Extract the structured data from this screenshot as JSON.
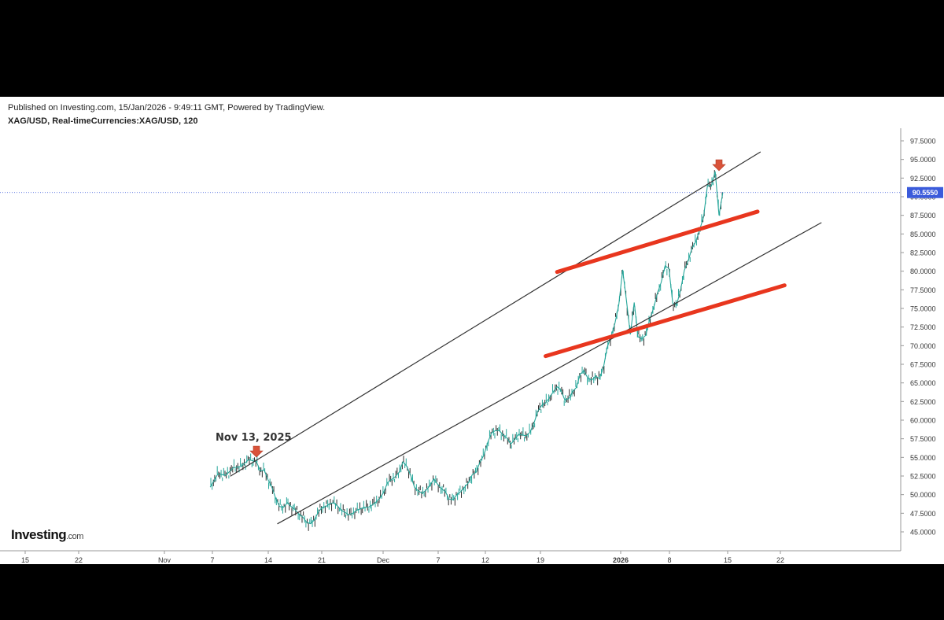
{
  "header": {
    "published": "Published on Investing.com, 15/Jan/2026 - 9:49:11 GMT, Powered by TradingView.",
    "symbol": "XAG/USD, Real-timeCurrencies:XAG/USD, 120"
  },
  "logo": {
    "main": "Investing",
    "suffix": ".com"
  },
  "annotation": {
    "label": "Nov 13, 2025"
  },
  "chart_data": {
    "type": "line",
    "title": "",
    "xlabel": "",
    "ylabel": "",
    "ylim": [
      44.0,
      99.0
    ],
    "y_ticks": [
      "97.5000",
      "95.0000",
      "92.5000",
      "90.0000",
      "87.5000",
      "85.0000",
      "82.5000",
      "80.0000",
      "77.5000",
      "75.0000",
      "72.5000",
      "70.0000",
      "67.5000",
      "65.0000",
      "62.5000",
      "60.0000",
      "57.5000",
      "55.0000",
      "52.5000",
      "50.0000",
      "47.5000",
      "45.0000"
    ],
    "x_ticks": [
      "15",
      "22",
      "Nov",
      "7",
      "14",
      "21",
      "Dec",
      "7",
      "12",
      "19",
      "2026",
      "8",
      "15",
      "22"
    ],
    "last_price": "90.5550",
    "colors": {
      "price": "#26a69a",
      "trend_channel": "#333333",
      "red_lines": "#e8361e",
      "arrow": "#d9533a",
      "price_line": "#3b5bdb"
    },
    "series": [
      {
        "values": [
          [
            -12,
            51.0
          ],
          [
            -10,
            52.8
          ],
          [
            -8,
            52.6
          ],
          [
            -6,
            53.6
          ],
          [
            -4,
            53.8
          ],
          [
            -2,
            54.7
          ],
          [
            0,
            54.4
          ],
          [
            1,
            53.2
          ],
          [
            2,
            53.3
          ],
          [
            3,
            52.0
          ],
          [
            4,
            51.0
          ],
          [
            5,
            49.5
          ],
          [
            6,
            48.4
          ],
          [
            7,
            48.3
          ],
          [
            8,
            48.9
          ],
          [
            9,
            48.4
          ],
          [
            10,
            48.0
          ],
          [
            11,
            47.4
          ],
          [
            12,
            47.0
          ],
          [
            13,
            46.3
          ],
          [
            14,
            46.1
          ],
          [
            15,
            46.6
          ],
          [
            16,
            47.6
          ],
          [
            17,
            48.3
          ],
          [
            18,
            48.4
          ],
          [
            19,
            48.8
          ],
          [
            20,
            48.9
          ],
          [
            21,
            48.5
          ],
          [
            22,
            47.9
          ],
          [
            23,
            47.6
          ],
          [
            24,
            47.3
          ],
          [
            25,
            47.5
          ],
          [
            26,
            47.9
          ],
          [
            27,
            48.1
          ],
          [
            28,
            48.3
          ],
          [
            29,
            48.3
          ],
          [
            30,
            48.6
          ],
          [
            31,
            49.0
          ],
          [
            32,
            49.5
          ],
          [
            33,
            50.3
          ],
          [
            34,
            51.6
          ],
          [
            35,
            52.0
          ],
          [
            36,
            52.4
          ],
          [
            37,
            53.0
          ],
          [
            38,
            54.4
          ],
          [
            39,
            53.8
          ],
          [
            40,
            52.6
          ],
          [
            41,
            51.0
          ],
          [
            42,
            50.5
          ],
          [
            43,
            50.2
          ],
          [
            44,
            50.6
          ],
          [
            45,
            51.2
          ],
          [
            46,
            52.1
          ],
          [
            47,
            51.4
          ],
          [
            48,
            50.8
          ],
          [
            49,
            50.4
          ],
          [
            50,
            49.4
          ],
          [
            51,
            49.3
          ],
          [
            52,
            50.0
          ],
          [
            53,
            50.4
          ],
          [
            54,
            51.0
          ],
          [
            55,
            51.6
          ],
          [
            56,
            52.7
          ],
          [
            57,
            53.0
          ],
          [
            58,
            54.4
          ],
          [
            59,
            55.3
          ],
          [
            60,
            57.0
          ],
          [
            61,
            58.3
          ],
          [
            62,
            58.6
          ],
          [
            63,
            58.6
          ],
          [
            64,
            58.0
          ],
          [
            65,
            57.6
          ],
          [
            66,
            56.8
          ],
          [
            67,
            57.4
          ],
          [
            68,
            58.1
          ],
          [
            69,
            58.0
          ],
          [
            70,
            57.9
          ],
          [
            71,
            58.4
          ],
          [
            72,
            59.6
          ],
          [
            73,
            61.2
          ],
          [
            74,
            62.0
          ],
          [
            75,
            62.3
          ],
          [
            76,
            63.0
          ],
          [
            77,
            63.8
          ],
          [
            78,
            64.5
          ],
          [
            79,
            64.0
          ],
          [
            80,
            62.7
          ],
          [
            81,
            62.9
          ],
          [
            82,
            63.8
          ],
          [
            83,
            64.4
          ],
          [
            84,
            66.2
          ],
          [
            85,
            66.6
          ],
          [
            86,
            65.6
          ],
          [
            87,
            65.4
          ],
          [
            88,
            65.9
          ],
          [
            89,
            65.6
          ],
          [
            90,
            67.0
          ],
          [
            91,
            69.8
          ],
          [
            92,
            71.2
          ],
          [
            93,
            73.0
          ],
          [
            94,
            75.5
          ],
          [
            95,
            80.2
          ],
          [
            96,
            76.0
          ],
          [
            97,
            71.5
          ],
          [
            98,
            75.8
          ],
          [
            99,
            71.2
          ],
          [
            100,
            70.9
          ],
          [
            101,
            71.4
          ],
          [
            102,
            73.5
          ],
          [
            103,
            75.0
          ],
          [
            104,
            77.0
          ],
          [
            105,
            78.5
          ],
          [
            106,
            80.7
          ],
          [
            107,
            80.4
          ],
          [
            108,
            75.7
          ],
          [
            109,
            75.5
          ],
          [
            110,
            77.4
          ],
          [
            111,
            80.1
          ],
          [
            112,
            81.4
          ],
          [
            113,
            83.1
          ],
          [
            114,
            84.0
          ],
          [
            115,
            85.6
          ],
          [
            116,
            87.3
          ],
          [
            117,
            91.5
          ],
          [
            118,
            91.4
          ],
          [
            119,
            93.4
          ],
          [
            120,
            87.5
          ],
          [
            121,
            90.6
          ]
        ]
      }
    ]
  }
}
